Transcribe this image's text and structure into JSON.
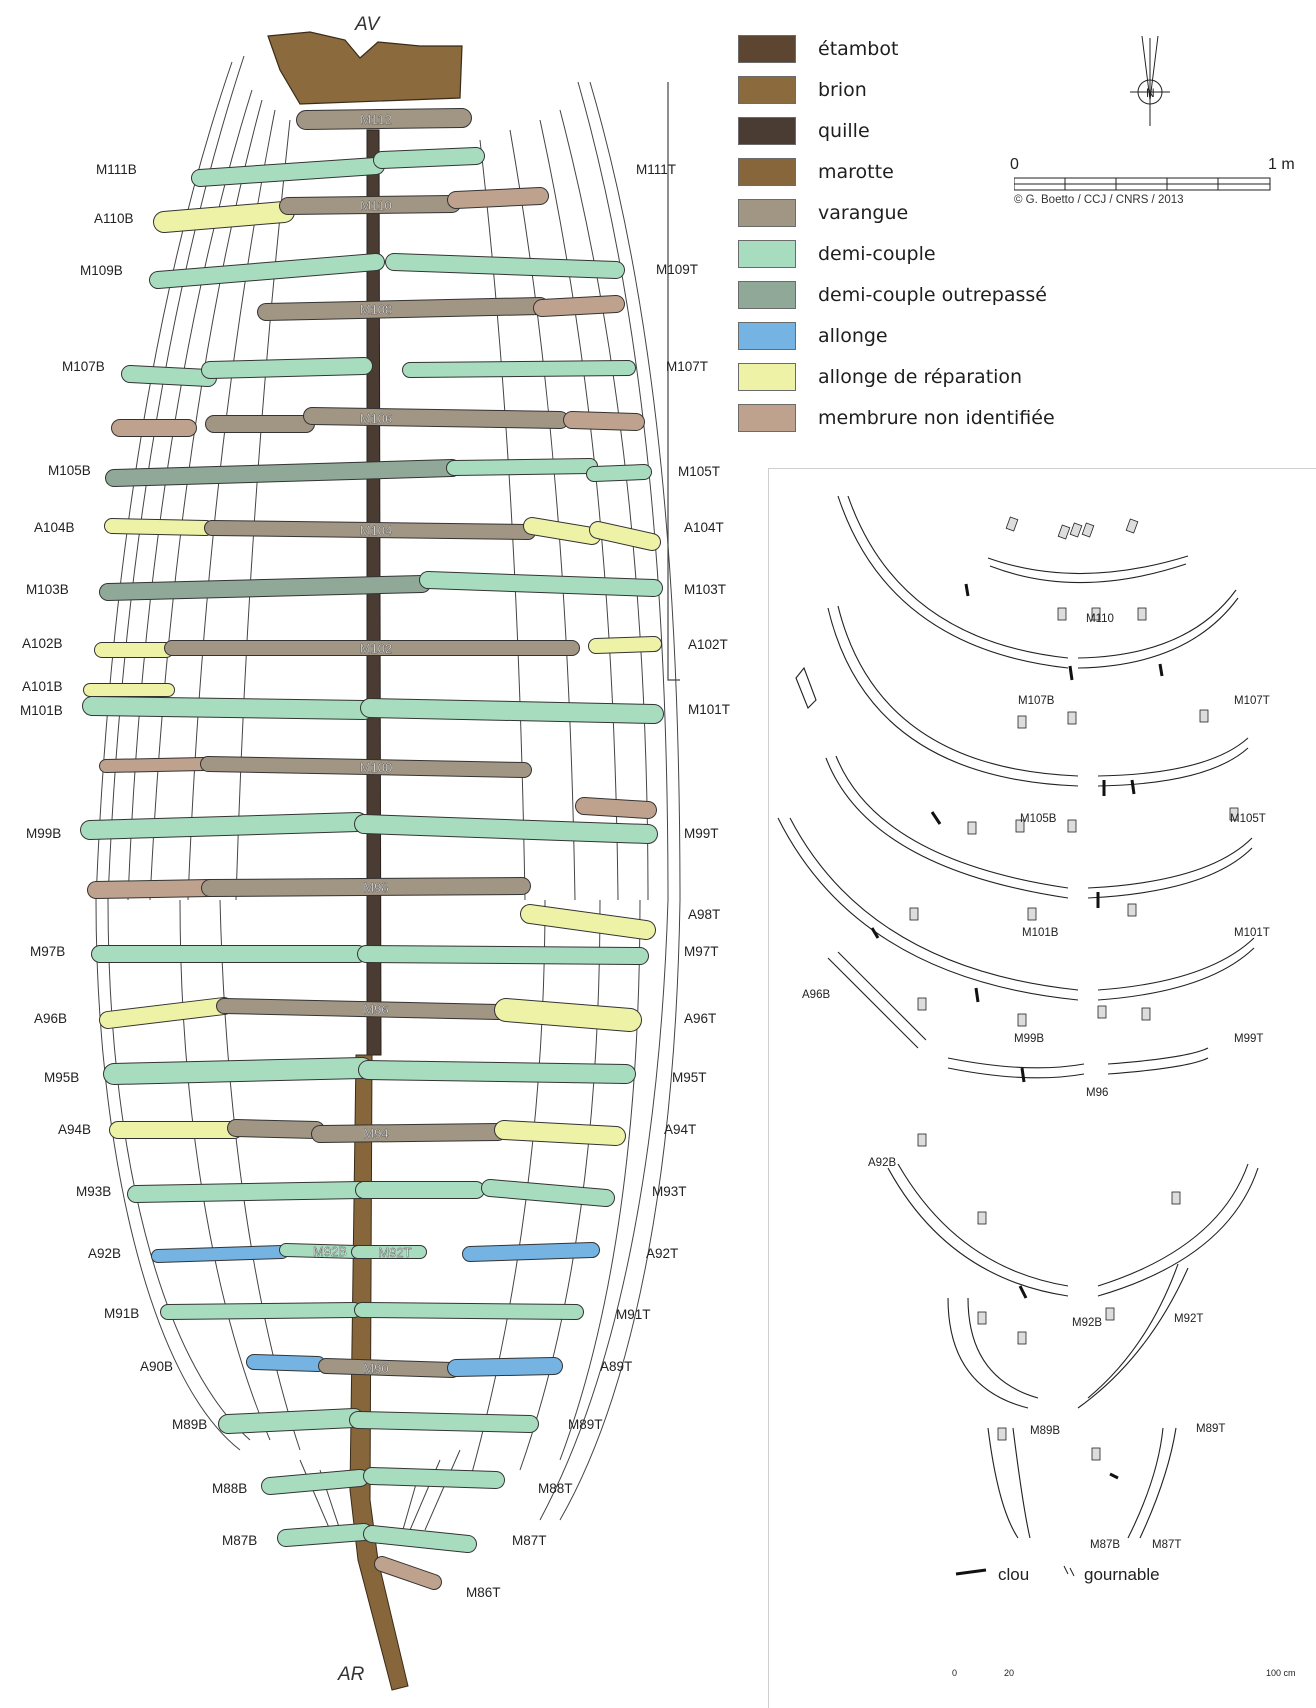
{
  "plan": {
    "bow_label": "AV",
    "stern_label": "AR",
    "port_labels": [
      {
        "key": "m111b",
        "text": "M111B"
      },
      {
        "key": "a110b",
        "text": "A110B"
      },
      {
        "key": "m109b",
        "text": "M109B"
      },
      {
        "key": "m107b",
        "text": "M107B"
      },
      {
        "key": "m105b",
        "text": "M105B"
      },
      {
        "key": "a104b",
        "text": "A104B"
      },
      {
        "key": "m103b",
        "text": "M103B"
      },
      {
        "key": "a102b",
        "text": "A102B"
      },
      {
        "key": "a101b",
        "text": "A101B"
      },
      {
        "key": "m101b",
        "text": "M101B"
      },
      {
        "key": "m99b",
        "text": "M99B"
      },
      {
        "key": "m97b",
        "text": "M97B"
      },
      {
        "key": "a96b",
        "text": "A96B"
      },
      {
        "key": "m95b",
        "text": "M95B"
      },
      {
        "key": "a94b",
        "text": "A94B"
      },
      {
        "key": "m93b",
        "text": "M93B"
      },
      {
        "key": "a92b",
        "text": "A92B"
      },
      {
        "key": "m91b",
        "text": "M91B"
      },
      {
        "key": "a90b",
        "text": "A90B"
      },
      {
        "key": "m89b",
        "text": "M89B"
      },
      {
        "key": "m88b",
        "text": "M88B"
      },
      {
        "key": "m87b",
        "text": "M87B"
      }
    ],
    "starboard_labels": [
      {
        "key": "m111t",
        "text": "M111T"
      },
      {
        "key": "m109t",
        "text": "M109T"
      },
      {
        "key": "m107t",
        "text": "M107T"
      },
      {
        "key": "m105t",
        "text": "M105T"
      },
      {
        "key": "a104t",
        "text": "A104T"
      },
      {
        "key": "m103t",
        "text": "M103T"
      },
      {
        "key": "a102t",
        "text": "A102T"
      },
      {
        "key": "m101t",
        "text": "M101T"
      },
      {
        "key": "m99t",
        "text": "M99T"
      },
      {
        "key": "a98t",
        "text": "A98T"
      },
      {
        "key": "m97t",
        "text": "M97T"
      },
      {
        "key": "a96t",
        "text": "A96T"
      },
      {
        "key": "m95t",
        "text": "M95T"
      },
      {
        "key": "a94t",
        "text": "A94T"
      },
      {
        "key": "m93t",
        "text": "M93T"
      },
      {
        "key": "a92t",
        "text": "A92T"
      },
      {
        "key": "m91t",
        "text": "M91T"
      },
      {
        "key": "a89t",
        "text": "A89T"
      },
      {
        "key": "m89t",
        "text": "M89T"
      },
      {
        "key": "m88t",
        "text": "M88T"
      },
      {
        "key": "m87t",
        "text": "M87T"
      },
      {
        "key": "m86t",
        "text": "M86T"
      }
    ],
    "center_labels": [
      "M112",
      "M110",
      "M108",
      "M106",
      "M104",
      "M102",
      "M100",
      "M98",
      "M96",
      "M94",
      "M92B",
      "M92T",
      "M90"
    ]
  },
  "legend": {
    "items": [
      {
        "label": "étambot",
        "color": "#5c4631"
      },
      {
        "label": "brion",
        "color": "#8b6a3e"
      },
      {
        "label": "quille",
        "color": "#4a3c32"
      },
      {
        "label": "marotte",
        "color": "#86663a"
      },
      {
        "label": "varangue",
        "color": "#a19584"
      },
      {
        "label": "demi-couple",
        "color": "#a8dcbe"
      },
      {
        "label": "demi-couple outrepassé",
        "color": "#8fa898"
      },
      {
        "label": "allonge",
        "color": "#74b3e2"
      },
      {
        "label": "allonge de réparation",
        "color": "#eef2a6"
      },
      {
        "label": "membrure non identifiée",
        "color": "#bfa28e"
      }
    ]
  },
  "scale": {
    "zero": "0",
    "one": "1 m",
    "credit": "© G. Boetto / CCJ / CNRS / 2013"
  },
  "compass": {
    "north": "N"
  },
  "sections": {
    "labels": [
      "M110",
      "M107B",
      "M107T",
      "M105B",
      "M105T",
      "M101B",
      "M101T",
      "M99B",
      "M99T",
      "A96B",
      "M96",
      "A92B",
      "M92B",
      "M92T",
      "M89B",
      "M89T",
      "M87B",
      "M87T"
    ],
    "key_nail": "clou",
    "key_treenail": "gournable",
    "scale_zero": "0",
    "scale_mid": "20",
    "scale_end": "100 cm"
  }
}
